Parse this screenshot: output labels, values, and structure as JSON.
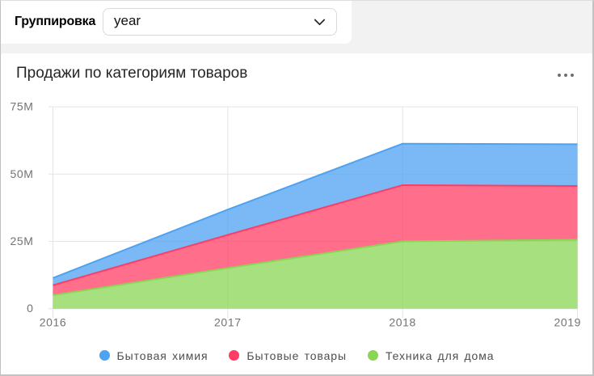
{
  "filter_bar": {
    "label": "Группировка",
    "select": {
      "value": "year",
      "icon": "chevron-down"
    }
  },
  "chart_card": {
    "title": "Продажи по категориям товаров",
    "menu_icon": "ellipsis-menu"
  },
  "chart_data": {
    "type": "area",
    "stacked": true,
    "title": "Продажи по категориям товаров",
    "x": [
      2016,
      2017,
      2018,
      2019
    ],
    "x_tick_labels": [
      "2016",
      "2017",
      "2018",
      "2019"
    ],
    "series": [
      {
        "name": "Бытовая химия",
        "color": "#4DA2F1",
        "values": [
          2.7,
          9.4,
          15.4,
          15.5
        ]
      },
      {
        "name": "Бытовые товары",
        "color": "#FF3D64",
        "values": [
          3.7,
          12.3,
          20.9,
          20.0
        ]
      },
      {
        "name": "Техника для дома",
        "color": "#8AD554",
        "values": [
          5.0,
          15.1,
          25.0,
          25.6
        ]
      }
    ],
    "values_unit": "M",
    "y_ticks": [
      0,
      25,
      50,
      75
    ],
    "y_tick_labels": [
      "0",
      "25M",
      "50M",
      "75M"
    ],
    "ylim": [
      0,
      75
    ],
    "grid": true,
    "fill_opacity": 0.75,
    "legend_position": "bottom",
    "colors": {
      "gridline": "#e4e4e4",
      "axis_label": "#737373",
      "legend_label": "#4d4d4d"
    }
  }
}
